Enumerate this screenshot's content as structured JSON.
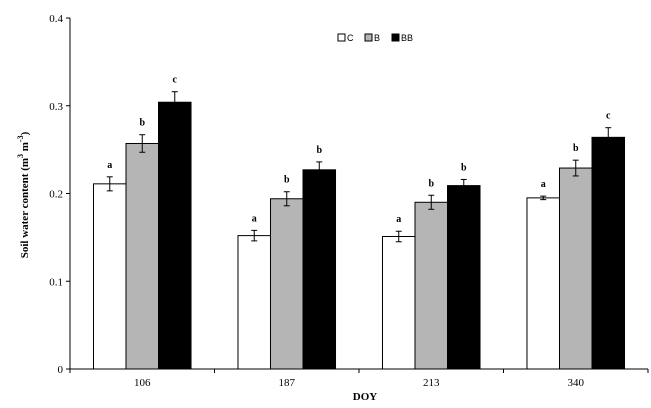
{
  "chart_data": {
    "type": "bar",
    "xlabel": "DOY",
    "ylabel": "Soil water content (m",
    "ylabel_sup1": "3",
    "ylabel_mid": " m",
    "ylabel_sup2": "-3",
    "ylabel_end": ")",
    "ylim": [
      0,
      0.4
    ],
    "yticks": [
      "0",
      "0.1",
      "0.2",
      "0.3",
      "0.4"
    ],
    "categories": [
      "106",
      "187",
      "213",
      "340"
    ],
    "legend_position": "top-center",
    "grid": false,
    "series": [
      {
        "name": "C",
        "color": "#ffffff",
        "values": [
          0.211,
          0.152,
          0.151,
          0.195
        ],
        "errors": [
          0.008,
          0.006,
          0.006,
          0.002
        ],
        "labels": [
          "a",
          "a",
          "a",
          "a"
        ]
      },
      {
        "name": "B",
        "color": "#b5b5b5",
        "values": [
          0.257,
          0.194,
          0.19,
          0.229
        ],
        "errors": [
          0.01,
          0.008,
          0.008,
          0.009
        ],
        "labels": [
          "b",
          "b",
          "b",
          "b"
        ]
      },
      {
        "name": "BB",
        "color": "#000000",
        "values": [
          0.304,
          0.227,
          0.209,
          0.264
        ],
        "errors": [
          0.012,
          0.009,
          0.007,
          0.011
        ],
        "labels": [
          "c",
          "b",
          "b",
          "c"
        ]
      }
    ]
  }
}
